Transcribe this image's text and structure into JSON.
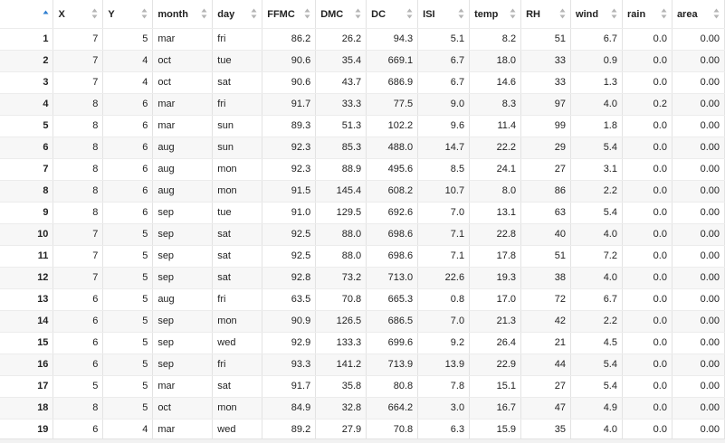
{
  "columns": [
    "X",
    "Y",
    "month",
    "day",
    "FFMC",
    "DMC",
    "DC",
    "ISI",
    "temp",
    "RH",
    "wind",
    "rain",
    "area"
  ],
  "column_types": [
    "num",
    "num",
    "txt",
    "txt",
    "num",
    "num",
    "num",
    "num",
    "num",
    "num",
    "num",
    "num",
    "num"
  ],
  "sort_column": "row-names",
  "rows": [
    [
      "1",
      "7",
      "5",
      "mar",
      "fri",
      "86.2",
      "26.2",
      "94.3",
      "5.1",
      "8.2",
      "51",
      "6.7",
      "0.0",
      "0.00"
    ],
    [
      "2",
      "7",
      "4",
      "oct",
      "tue",
      "90.6",
      "35.4",
      "669.1",
      "6.7",
      "18.0",
      "33",
      "0.9",
      "0.0",
      "0.00"
    ],
    [
      "3",
      "7",
      "4",
      "oct",
      "sat",
      "90.6",
      "43.7",
      "686.9",
      "6.7",
      "14.6",
      "33",
      "1.3",
      "0.0",
      "0.00"
    ],
    [
      "4",
      "8",
      "6",
      "mar",
      "fri",
      "91.7",
      "33.3",
      "77.5",
      "9.0",
      "8.3",
      "97",
      "4.0",
      "0.2",
      "0.00"
    ],
    [
      "5",
      "8",
      "6",
      "mar",
      "sun",
      "89.3",
      "51.3",
      "102.2",
      "9.6",
      "11.4",
      "99",
      "1.8",
      "0.0",
      "0.00"
    ],
    [
      "6",
      "8",
      "6",
      "aug",
      "sun",
      "92.3",
      "85.3",
      "488.0",
      "14.7",
      "22.2",
      "29",
      "5.4",
      "0.0",
      "0.00"
    ],
    [
      "7",
      "8",
      "6",
      "aug",
      "mon",
      "92.3",
      "88.9",
      "495.6",
      "8.5",
      "24.1",
      "27",
      "3.1",
      "0.0",
      "0.00"
    ],
    [
      "8",
      "8",
      "6",
      "aug",
      "mon",
      "91.5",
      "145.4",
      "608.2",
      "10.7",
      "8.0",
      "86",
      "2.2",
      "0.0",
      "0.00"
    ],
    [
      "9",
      "8",
      "6",
      "sep",
      "tue",
      "91.0",
      "129.5",
      "692.6",
      "7.0",
      "13.1",
      "63",
      "5.4",
      "0.0",
      "0.00"
    ],
    [
      "10",
      "7",
      "5",
      "sep",
      "sat",
      "92.5",
      "88.0",
      "698.6",
      "7.1",
      "22.8",
      "40",
      "4.0",
      "0.0",
      "0.00"
    ],
    [
      "11",
      "7",
      "5",
      "sep",
      "sat",
      "92.5",
      "88.0",
      "698.6",
      "7.1",
      "17.8",
      "51",
      "7.2",
      "0.0",
      "0.00"
    ],
    [
      "12",
      "7",
      "5",
      "sep",
      "sat",
      "92.8",
      "73.2",
      "713.0",
      "22.6",
      "19.3",
      "38",
      "4.0",
      "0.0",
      "0.00"
    ],
    [
      "13",
      "6",
      "5",
      "aug",
      "fri",
      "63.5",
      "70.8",
      "665.3",
      "0.8",
      "17.0",
      "72",
      "6.7",
      "0.0",
      "0.00"
    ],
    [
      "14",
      "6",
      "5",
      "sep",
      "mon",
      "90.9",
      "126.5",
      "686.5",
      "7.0",
      "21.3",
      "42",
      "2.2",
      "0.0",
      "0.00"
    ],
    [
      "15",
      "6",
      "5",
      "sep",
      "wed",
      "92.9",
      "133.3",
      "699.6",
      "9.2",
      "26.4",
      "21",
      "4.5",
      "0.0",
      "0.00"
    ],
    [
      "16",
      "6",
      "5",
      "sep",
      "fri",
      "93.3",
      "141.2",
      "713.9",
      "13.9",
      "22.9",
      "44",
      "5.4",
      "0.0",
      "0.00"
    ],
    [
      "17",
      "5",
      "5",
      "mar",
      "sat",
      "91.7",
      "35.8",
      "80.8",
      "7.8",
      "15.1",
      "27",
      "5.4",
      "0.0",
      "0.00"
    ],
    [
      "18",
      "8",
      "5",
      "oct",
      "mon",
      "84.9",
      "32.8",
      "664.2",
      "3.0",
      "16.7",
      "47",
      "4.9",
      "0.0",
      "0.00"
    ],
    [
      "19",
      "6",
      "4",
      "mar",
      "wed",
      "89.2",
      "27.9",
      "70.8",
      "6.3",
      "15.9",
      "35",
      "4.0",
      "0.0",
      "0.00"
    ]
  ],
  "colors": {
    "sort_active": "#2f7fd1",
    "sort_inactive": "#b4b4b4",
    "grid_line": "#e3e3e3",
    "stripe": "#f7f7f7"
  }
}
